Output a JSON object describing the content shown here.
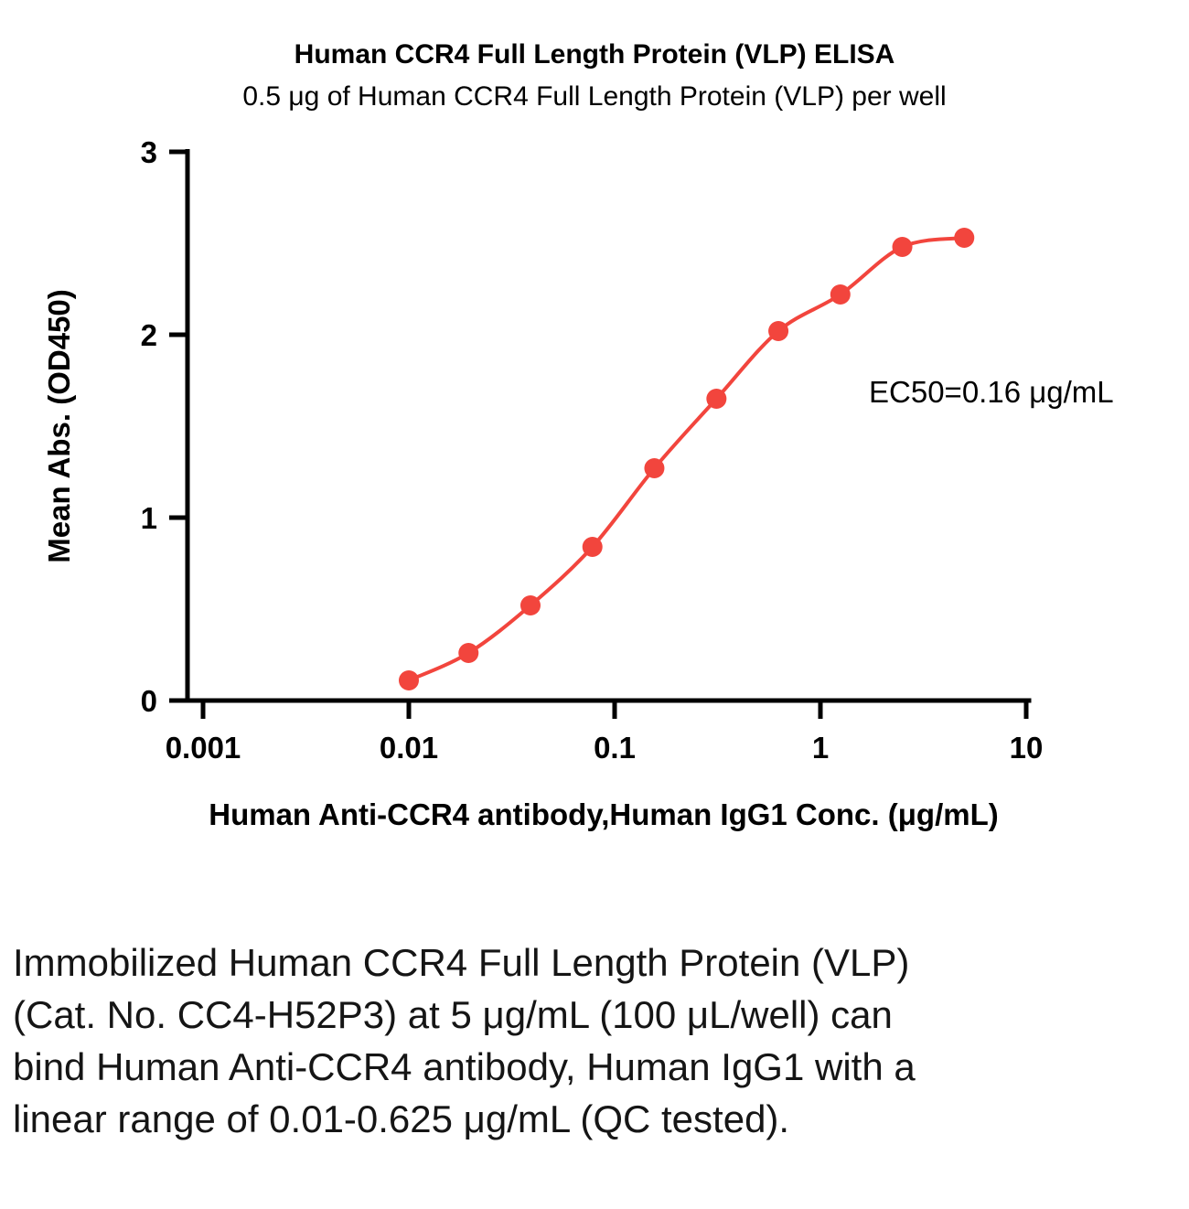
{
  "chart_data": {
    "type": "scatter",
    "title": "Human CCR4 Full Length Protein (VLP) ELISA",
    "subtitle": "0.5 μg of Human CCR4 Full Length Protein (VLP) per well",
    "xlabel": "Human Anti-CCR4 antibody,Human IgG1 Conc. (μg/mL)",
    "ylabel": "Mean Abs. (OD450)",
    "x_scale": "log",
    "xlim": [
      0.001,
      10
    ],
    "ylim": [
      0,
      3
    ],
    "x_ticks": [
      0.001,
      0.01,
      0.1,
      1,
      10
    ],
    "x_tick_labels": [
      "0.001",
      "0.01",
      "0.1",
      "1",
      "10"
    ],
    "y_ticks": [
      0,
      1,
      2,
      3
    ],
    "y_tick_labels": [
      "0",
      "1",
      "2",
      "3"
    ],
    "grid": false,
    "legend": "none",
    "annotation": "EC50=0.16 μg/mL",
    "point_color": "#f2453d",
    "curve_color": "#f2453d",
    "series": [
      {
        "name": "Human Anti-CCR4 antibody, Human IgG1",
        "x": [
          0.01,
          0.0195,
          0.039,
          0.078,
          0.156,
          0.3125,
          0.625,
          1.25,
          2.5,
          5
        ],
        "y": [
          0.11,
          0.26,
          0.52,
          0.84,
          1.27,
          1.65,
          2.02,
          2.22,
          2.48,
          2.53
        ]
      }
    ]
  },
  "caption": "Immobilized Human CCR4 Full Length Protein (VLP) (Cat. No. CC4-H52P3) at 5 μg/mL (100 μL/well) can bind Human Anti-CCR4 antibody, Human IgG1 with a linear range of 0.01-0.625 μg/mL (QC tested)."
}
